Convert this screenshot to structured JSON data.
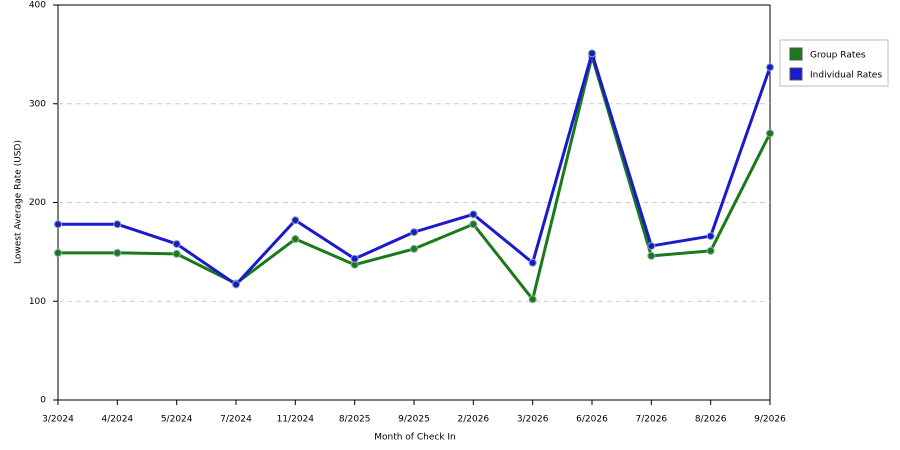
{
  "chart_data": {
    "type": "line",
    "x_label": "Month of Check In",
    "y_label": "Lowest Average Rate (USD)",
    "categories": [
      "3/2024",
      "4/2024",
      "5/2024",
      "7/2024",
      "11/2024",
      "8/2025",
      "9/2025",
      "2/2026",
      "3/2026",
      "6/2026",
      "7/2026",
      "8/2026",
      "9/2026"
    ],
    "series": [
      {
        "name": "Group Rates",
        "color": "#1a7a1a",
        "values": [
          149,
          149,
          148,
          118,
          163,
          137,
          153,
          178,
          102,
          348,
          146,
          151,
          270
        ]
      },
      {
        "name": "Individual Rates",
        "color": "#1a1acc",
        "values": [
          178,
          178,
          158,
          117,
          182,
          143,
          170,
          188,
          139,
          351,
          156,
          166,
          337
        ]
      }
    ],
    "ylim": [
      0,
      400
    ],
    "yticks": [
      0,
      100,
      200,
      300,
      400
    ],
    "grid": true,
    "legend": "right"
  }
}
